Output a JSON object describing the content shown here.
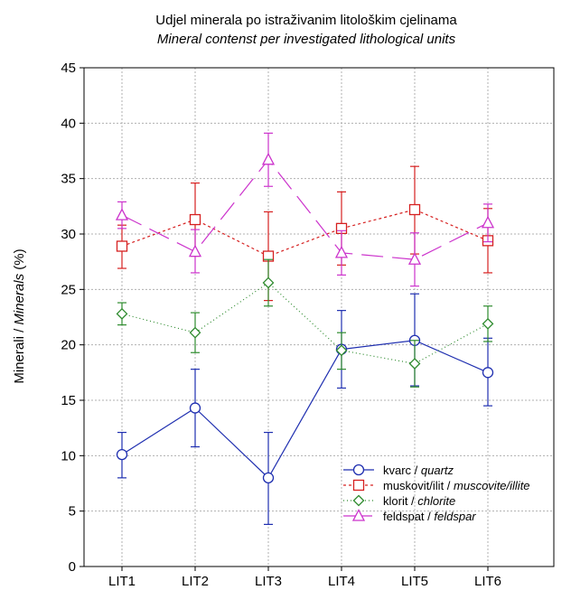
{
  "chart_data": {
    "type": "line",
    "title": "Udjel minerala po istraživanim litološkim cjelinama",
    "subtitle": "Mineral contenst per investigated lithological units",
    "ylabel_main": "Minerali / ",
    "ylabel_italic": "Minerals",
    "ylabel_unit": " (%)",
    "categories": [
      "LIT1",
      "LIT2",
      "LIT3",
      "LIT4",
      "LIT5",
      "LIT6"
    ],
    "ylim": [
      0,
      45
    ],
    "yticks": [
      0,
      5,
      10,
      15,
      20,
      25,
      30,
      35,
      40,
      45
    ],
    "grid": true,
    "legend_position": "bottom-right",
    "series": [
      {
        "name_main": "kvarc / ",
        "name_italic": "quartz",
        "color": "#1f2fb0",
        "marker": "circle",
        "dash": "none",
        "offset": 0,
        "values": [
          10.1,
          14.3,
          8.0,
          19.6,
          20.4,
          17.5
        ],
        "err_low": [
          8.0,
          10.8,
          3.8,
          16.1,
          16.3,
          14.5
        ],
        "err_high": [
          12.1,
          17.8,
          12.1,
          23.1,
          24.6,
          20.6
        ]
      },
      {
        "name_main": "muskovit/ilit / ",
        "name_italic": "muscovite/illite",
        "color": "#d62020",
        "marker": "square",
        "dash": "3,3",
        "offset": 0,
        "values": [
          28.9,
          31.3,
          28.0,
          30.5,
          32.2,
          29.4
        ],
        "err_low": [
          26.9,
          28.0,
          24.0,
          27.2,
          28.2,
          26.5
        ],
        "err_high": [
          30.8,
          34.6,
          32.0,
          33.8,
          36.1,
          32.3
        ]
      },
      {
        "name_main": "klorit / ",
        "name_italic": "chlorite",
        "color": "#2e8b2e",
        "marker": "diamond",
        "dash": "1,3",
        "offset": 0,
        "values": [
          22.8,
          21.1,
          25.6,
          19.5,
          18.3,
          21.9
        ],
        "err_low": [
          21.8,
          19.3,
          23.5,
          17.8,
          16.2,
          20.3
        ],
        "err_high": [
          23.8,
          22.9,
          27.7,
          21.1,
          20.4,
          23.5
        ]
      },
      {
        "name_main": "feldspat / ",
        "name_italic": "feldspar",
        "color": "#cc33cc",
        "marker": "triangle",
        "dash": "24,10",
        "offset": 0,
        "values": [
          31.7,
          28.4,
          36.7,
          28.3,
          27.7,
          31.0
        ],
        "err_low": [
          30.5,
          26.5,
          34.3,
          26.3,
          25.3,
          29.3
        ],
        "err_high": [
          32.9,
          30.4,
          39.1,
          30.3,
          30.1,
          32.7
        ]
      }
    ]
  }
}
